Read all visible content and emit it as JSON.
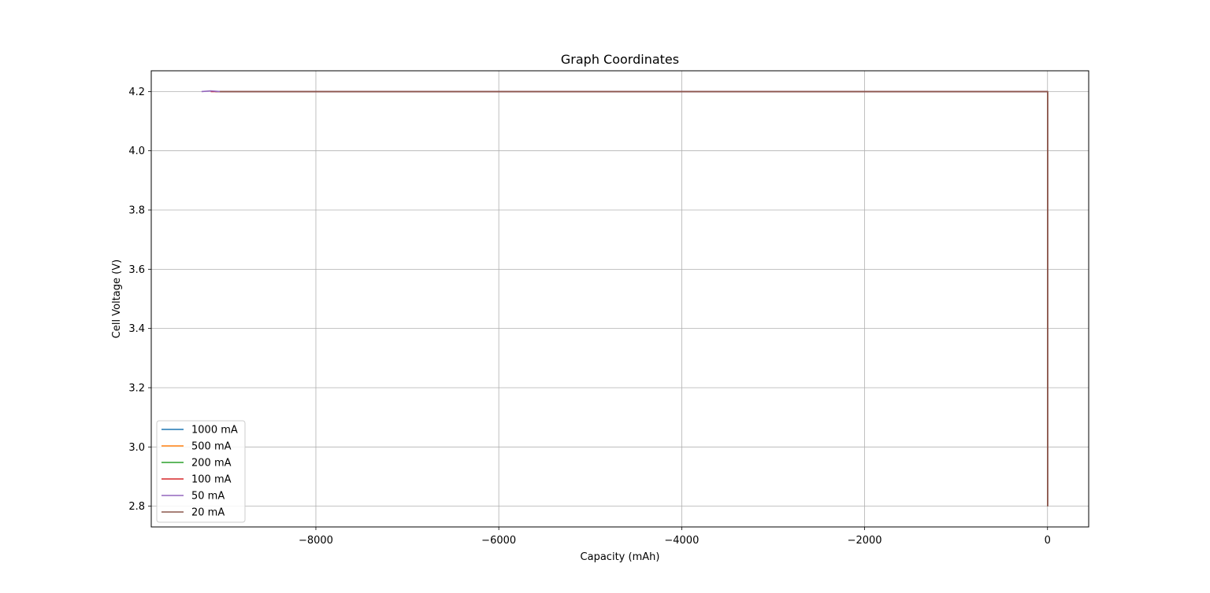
{
  "chart_data": {
    "type": "line",
    "title": "Graph Coordinates",
    "xlabel": "Capacity (mAh)",
    "ylabel": "Cell Voltage (V)",
    "xlim": [
      -9800,
      450
    ],
    "ylim": [
      2.73,
      4.27
    ],
    "xticks": [
      -8000,
      -6000,
      -4000,
      -2000,
      0
    ],
    "xtick_labels": [
      "−8000",
      "−6000",
      "−4000",
      "−2000",
      "0"
    ],
    "yticks": [
      2.8,
      3.0,
      3.2,
      3.4,
      3.6,
      3.8,
      4.0,
      4.2
    ],
    "ytick_labels": [
      "2.8",
      "3.0",
      "3.2",
      "3.4",
      "3.6",
      "3.8",
      "4.0",
      "4.2"
    ],
    "grid": true,
    "legend_position": "lower-left",
    "series": [
      {
        "name": "1000 mA",
        "color": "#1f77b4",
        "x": [
          0,
          0,
          -9050
        ],
        "y": [
          2.8,
          4.2,
          4.2
        ]
      },
      {
        "name": "500 mA",
        "color": "#ff7f0e",
        "x": [
          0,
          0,
          -9050
        ],
        "y": [
          2.8,
          4.2,
          4.2
        ]
      },
      {
        "name": "200 mA",
        "color": "#2ca02c",
        "x": [
          0,
          0,
          -9100
        ],
        "y": [
          2.8,
          4.2,
          4.2
        ]
      },
      {
        "name": "100 mA",
        "color": "#d62728",
        "x": [
          0,
          0,
          -9150
        ],
        "y": [
          2.8,
          4.2,
          4.2
        ]
      },
      {
        "name": "50 mA",
        "color": "#9467bd",
        "x": [
          0,
          0,
          -9050,
          -9150,
          -9250
        ],
        "y": [
          2.8,
          4.2,
          4.2,
          4.202,
          4.2
        ]
      },
      {
        "name": "20 mA",
        "color": "#8c564b",
        "x": [
          0,
          0,
          -9050
        ],
        "y": [
          2.8,
          4.2,
          4.2
        ]
      }
    ]
  }
}
